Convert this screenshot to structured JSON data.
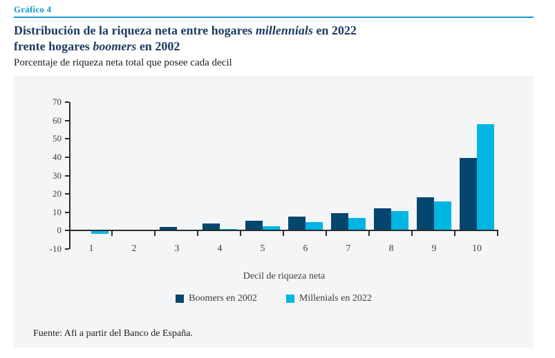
{
  "header": {
    "kicker": "Gráfico 4",
    "title": {
      "line1_pre": "Distribución de la riqueza neta entre hogares ",
      "line1_italic": "millennials",
      "line1_post": " en 2022",
      "line2_pre": "frente hogares ",
      "line2_italic": "boomers",
      "line2_post": " en 2002"
    },
    "subtitle": "Porcentaje de riqueza neta total que posee cada decil"
  },
  "chart_data": {
    "type": "bar",
    "categories": [
      "1",
      "2",
      "3",
      "4",
      "5",
      "6",
      "7",
      "8",
      "9",
      "10"
    ],
    "series": [
      {
        "name": "Boomers en 2002",
        "color": "#04476e",
        "values": [
          0.2,
          0.4,
          2,
          4,
          5.5,
          7.5,
          9.5,
          12,
          18,
          39.5
        ]
      },
      {
        "name": "Millenials en 2022",
        "color": "#00b5e2",
        "values": [
          -1.5,
          0.3,
          0.5,
          1,
          2.5,
          4.5,
          7,
          10.5,
          16,
          58
        ]
      }
    ],
    "title": "Distribución de la riqueza neta entre hogares millennials en 2022 frente hogares boomers en 2002",
    "subtitle": "Porcentaje de riqueza neta total que posee cada decil",
    "xlabel": "Decil de riqueza neta",
    "ylabel": "",
    "ylim": [
      -10,
      70
    ],
    "ytick_step": 10,
    "yticks": [
      70,
      60,
      50,
      40,
      30,
      20,
      10,
      0,
      -10
    ],
    "grid": false,
    "legend_position": "bottom"
  },
  "footer": {
    "source": "Fuente: Afi a partir del Banco de España."
  },
  "colors": {
    "accent_blue": "#0d9ad5",
    "title_navy": "#1c3c60",
    "panel_bg": "#f4f5f7",
    "boomers_bar": "#04476e",
    "millennials_bar": "#00b5e2",
    "axis": "#2b2b2b"
  }
}
